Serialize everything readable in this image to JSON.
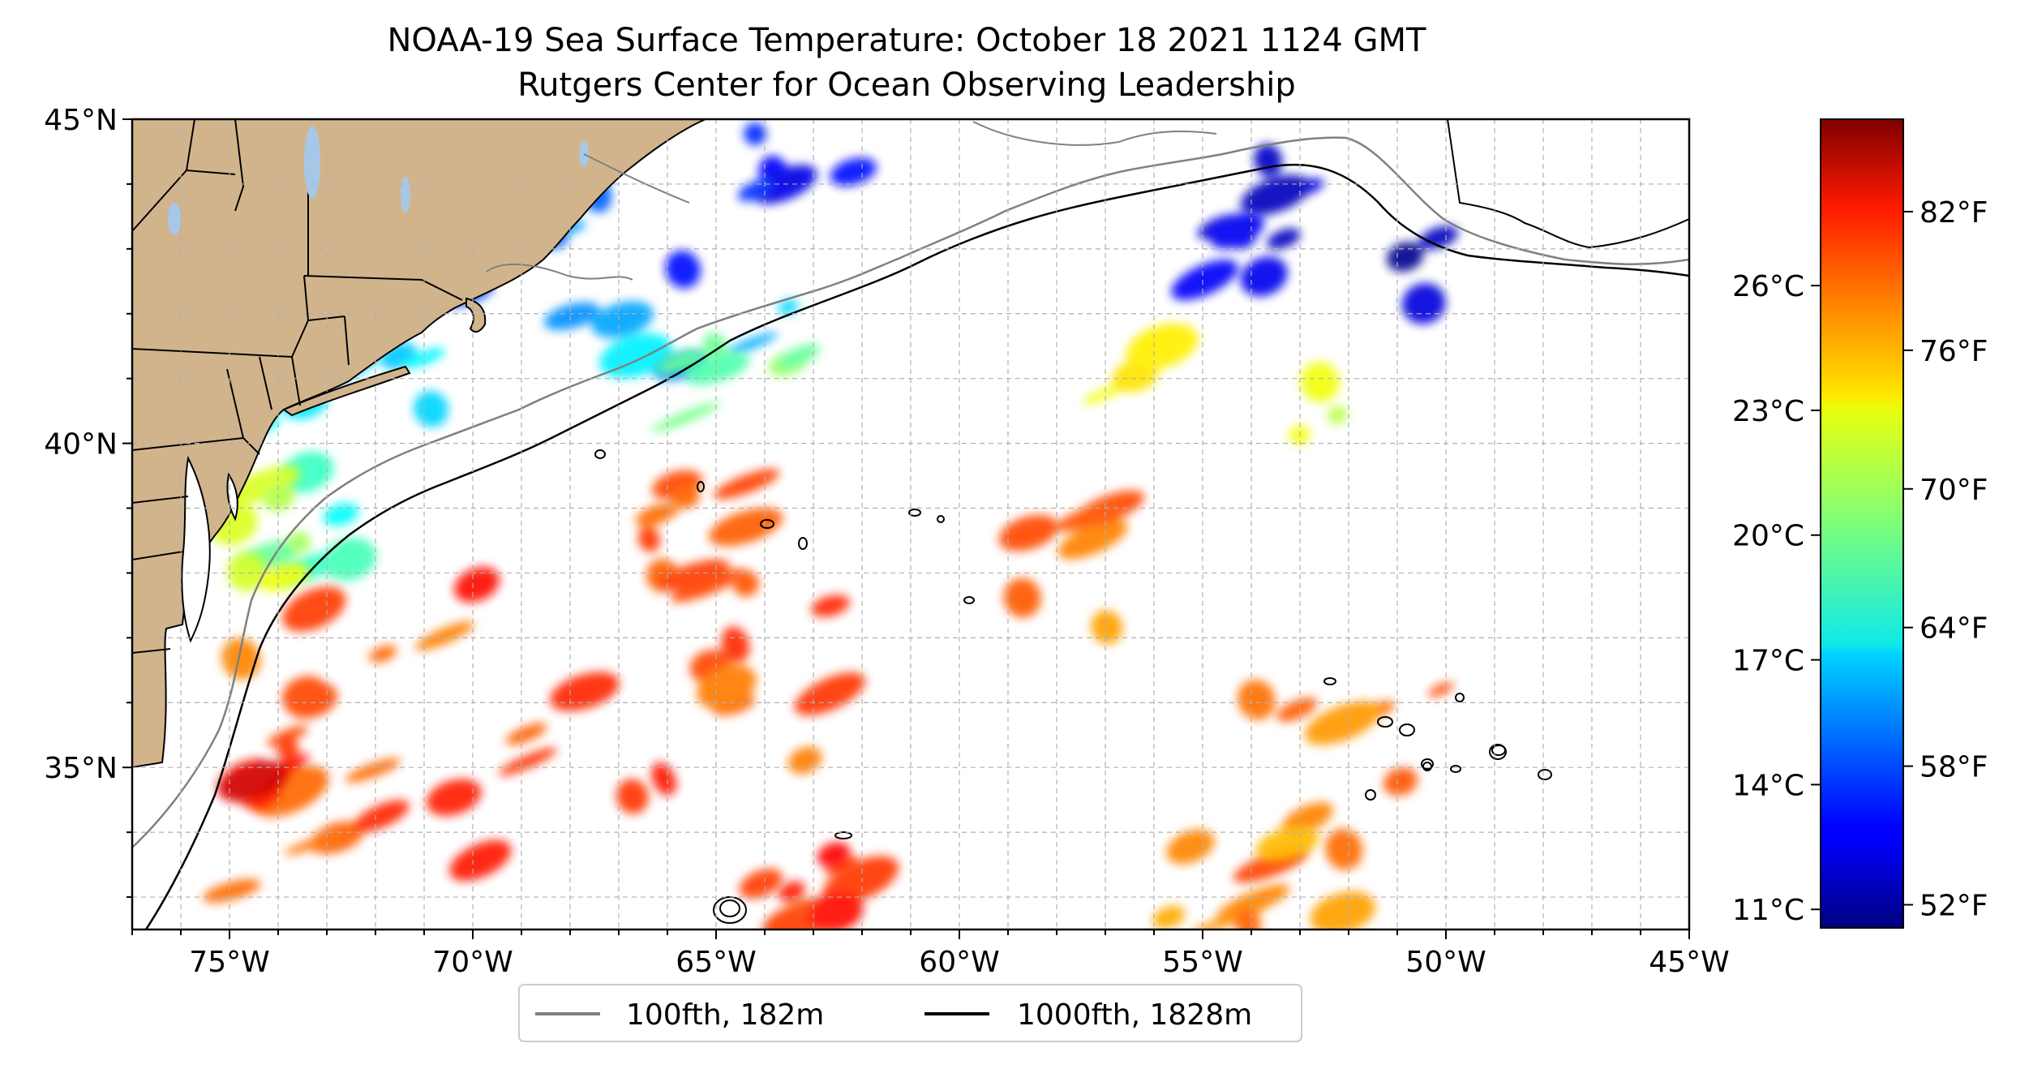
{
  "title": {
    "line1": "NOAA-19 Sea Surface Temperature: October 18 2021 1124 GMT",
    "line2": "Rutgers Center for Ocean Observing Leadership"
  },
  "map": {
    "lon_range": [
      -77,
      -45
    ],
    "lat_range": [
      32.5,
      45
    ],
    "x_ticks": [
      {
        "lon": -75,
        "label": "75°W"
      },
      {
        "lon": -70,
        "label": "70°W"
      },
      {
        "lon": -65,
        "label": "65°W"
      },
      {
        "lon": -60,
        "label": "60°W"
      },
      {
        "lon": -55,
        "label": "55°W"
      },
      {
        "lon": -50,
        "label": "50°W"
      },
      {
        "lon": -45,
        "label": "45°W"
      }
    ],
    "y_ticks": [
      {
        "lat": 35,
        "label": "35°N"
      },
      {
        "lat": 40,
        "label": "40°N"
      },
      {
        "lat": 45,
        "label": "45°N"
      }
    ],
    "gridlines": true,
    "land_color": "#d2b48c",
    "lake_color": "#a6c8e8",
    "data_region_lon": [
      -75,
      -50
    ]
  },
  "legend": {
    "placement": "bottom-center",
    "items": [
      {
        "label": "100fth, 182m",
        "color": "#808080"
      },
      {
        "label": "1000fth, 1828m",
        "color": "#000000"
      }
    ]
  },
  "colorbar": {
    "colormap": "jet",
    "range_f": [
      51,
      86
    ],
    "fahrenheit_ticks": [
      {
        "value": 52,
        "label": "52°F"
      },
      {
        "value": 58,
        "label": "58°F"
      },
      {
        "value": 64,
        "label": "64°F"
      },
      {
        "value": 70,
        "label": "70°F"
      },
      {
        "value": 76,
        "label": "76°F"
      },
      {
        "value": 82,
        "label": "82°F"
      }
    ],
    "celsius_ticks": [
      {
        "value": 11,
        "label": "11°C"
      },
      {
        "value": 14,
        "label": "14°C"
      },
      {
        "value": 17,
        "label": "17°C"
      },
      {
        "value": 20,
        "label": "20°C"
      },
      {
        "value": 23,
        "label": "23°C"
      },
      {
        "value": 26,
        "label": "26°C"
      }
    ]
  },
  "chart_data": {
    "type": "heatmap",
    "title": "NOAA-19 Sea Surface Temperature: October 18 2021 1124 GMT",
    "subtitle": "Rutgers Center for Ocean Observing Leadership",
    "xlabel": "",
    "ylabel": "",
    "xlim": [
      -77,
      -45
    ],
    "ylim": [
      32.5,
      45
    ],
    "unit": "°F",
    "value_range": [
      51,
      86
    ],
    "regions": [
      {
        "lon": [
          -70.5,
          -66
        ],
        "lat": [
          42,
          44.6
        ],
        "temp_f": 59
      },
      {
        "lon": [
          -66,
          -62
        ],
        "lat": [
          42.5,
          45
        ],
        "temp_f": 56
      },
      {
        "lon": [
          -68,
          -63
        ],
        "lat": [
          41,
          42.5
        ],
        "temp_f": 62
      },
      {
        "lon": [
          -73.5,
          -69.5
        ],
        "lat": [
          40.4,
          41.4
        ],
        "temp_f": 64
      },
      {
        "lon": [
          -74.5,
          -72
        ],
        "lat": [
          38,
          40.5
        ],
        "temp_f": 66
      },
      {
        "lon": [
          -75,
          -73.5
        ],
        "lat": [
          37.5,
          39.5
        ],
        "temp_f": 71
      },
      {
        "lon": [
          -66,
          -63
        ],
        "lat": [
          40,
          41.5
        ],
        "temp_f": 68
      },
      {
        "lon": [
          -54,
          -50
        ],
        "lat": [
          42,
          45
        ],
        "temp_f": 53
      },
      {
        "lon": [
          -56,
          -53
        ],
        "lat": [
          42.5,
          43.5
        ],
        "temp_f": 55
      },
      {
        "lon": [
          -57,
          -50
        ],
        "lat": [
          40,
          41.5
        ],
        "temp_f": 72
      },
      {
        "lon": [
          -66,
          -62.5
        ],
        "lat": [
          37.5,
          40
        ],
        "temp_f": 79
      },
      {
        "lon": [
          -70,
          -65
        ],
        "lat": [
          37.5,
          39
        ],
        "temp_f": 80
      },
      {
        "lon": [
          -75,
          -62
        ],
        "lat": [
          33,
          37.5
        ],
        "temp_f": 79
      },
      {
        "lon": [
          -75,
          -74
        ],
        "lat": [
          34.5,
          35
        ],
        "temp_f": 82
      },
      {
        "lon": [
          -59,
          -56
        ],
        "lat": [
          37,
          39.3
        ],
        "temp_f": 78
      },
      {
        "lon": [
          -54,
          -50
        ],
        "lat": [
          32.5,
          37
        ],
        "temp_f": 78
      },
      {
        "lon": [
          -56,
          -53
        ],
        "lat": [
          32.5,
          34
        ],
        "temp_f": 77
      },
      {
        "lon": [
          -63.5,
          -61.5
        ],
        "lat": [
          32.5,
          34
        ],
        "temp_f": 80
      }
    ]
  }
}
